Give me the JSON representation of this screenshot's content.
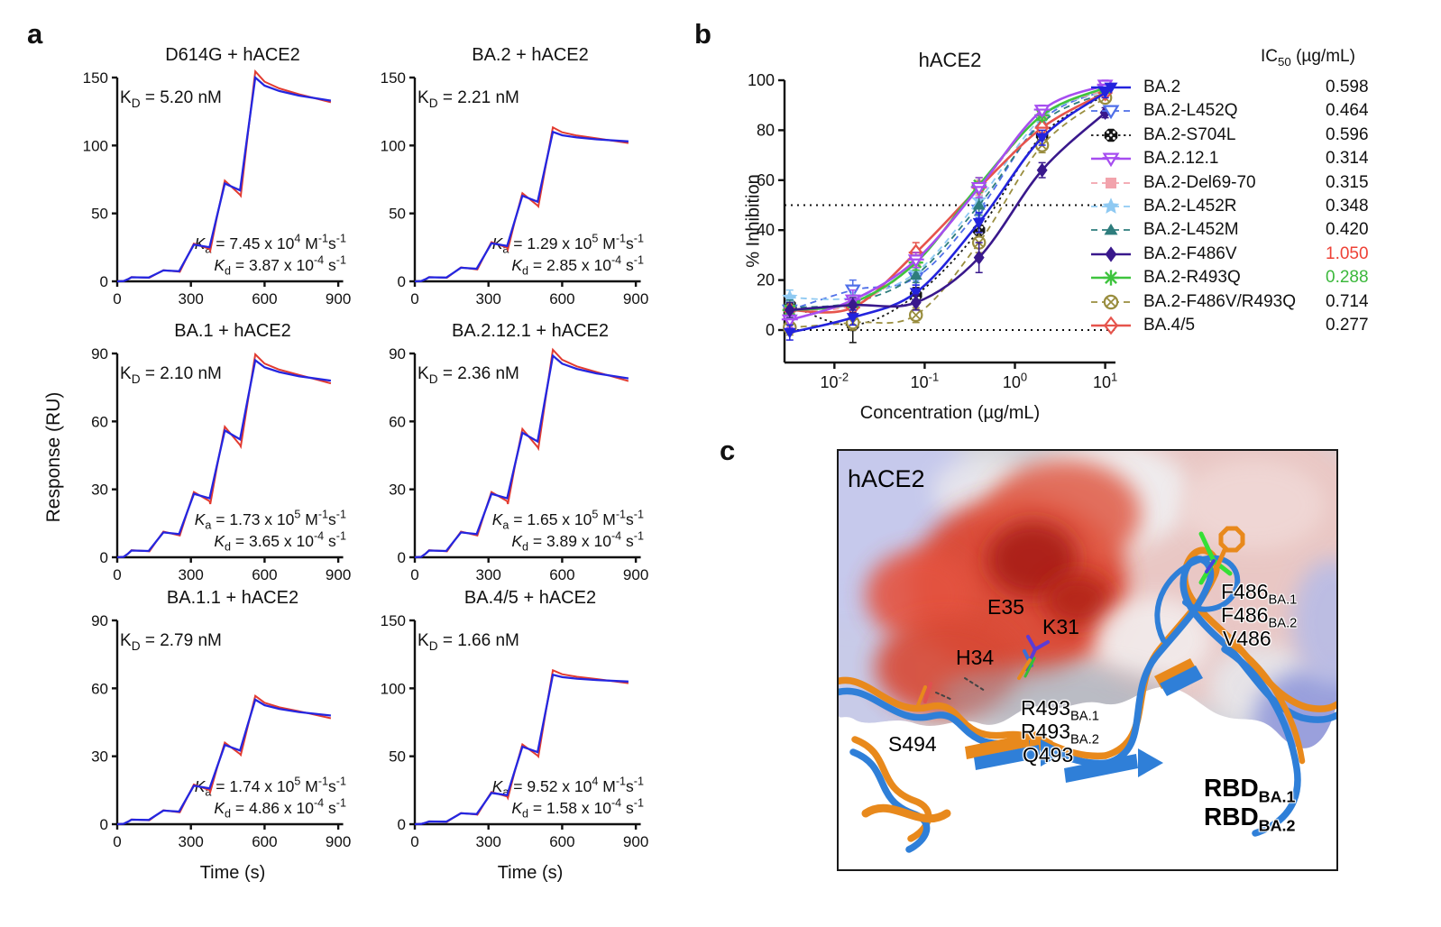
{
  "figure": {
    "panel_a_letter": "a",
    "panel_b_letter": "b",
    "panel_c_letter": "c"
  },
  "chart_data": [
    {
      "type": "line",
      "title": "D614G + hACE2",
      "xlabel": "Time (s)",
      "ylabel": "Response (RU)",
      "show_xlabel": false,
      "kD": "5.20 nM",
      "ka_coeff": "7.45",
      "ka_exp": "4",
      "kd_coeff": "3.87",
      "kd_exp": "-4",
      "xlim": [
        0,
        940
      ],
      "ylim": [
        0,
        150
      ],
      "xticks": [
        0,
        300,
        600,
        900
      ],
      "yticks": [
        0,
        50,
        100,
        150
      ],
      "steps": [
        3,
        8,
        27,
        72,
        150
      ],
      "end_value": 133
    },
    {
      "type": "line",
      "title": "BA.2 + hACE2",
      "xlabel": "Time (s)",
      "ylabel": "Response (RU)",
      "show_xlabel": false,
      "kD": "2.21 nM",
      "ka_coeff": "1.29",
      "ka_exp": "5",
      "kd_coeff": "2.85",
      "kd_exp": "-4",
      "xlim": [
        0,
        940
      ],
      "ylim": [
        0,
        150
      ],
      "xticks": [
        0,
        300,
        600,
        900
      ],
      "yticks": [
        0,
        50,
        100,
        150
      ],
      "steps": [
        3,
        10,
        28,
        63,
        110
      ],
      "end_value": 103
    },
    {
      "type": "line",
      "title": "BA.1 + hACE2",
      "xlabel": "Time (s)",
      "ylabel": "Response (RU)",
      "show_xlabel": false,
      "kD": "2.10 nM",
      "ka_coeff": "1.73",
      "ka_exp": "5",
      "kd_coeff": "3.65",
      "kd_exp": "-4",
      "xlim": [
        0,
        940
      ],
      "ylim": [
        0,
        90
      ],
      "xticks": [
        0,
        300,
        600,
        900
      ],
      "yticks": [
        0,
        30,
        60,
        90
      ],
      "steps": [
        3,
        11,
        28,
        56,
        87
      ],
      "end_value": 78
    },
    {
      "type": "line",
      "title": "BA.2.12.1 + hACE2",
      "xlabel": "Time (s)",
      "ylabel": "Response (RU)",
      "show_xlabel": false,
      "kD": "2.36 nM",
      "ka_coeff": "1.65",
      "ka_exp": "5",
      "kd_coeff": "3.89",
      "kd_exp": "-4",
      "xlim": [
        0,
        940
      ],
      "ylim": [
        0,
        90
      ],
      "xticks": [
        0,
        300,
        600,
        900
      ],
      "yticks": [
        0,
        30,
        60,
        90
      ],
      "steps": [
        3,
        11,
        28,
        55,
        89
      ],
      "end_value": 79
    },
    {
      "type": "line",
      "title": "BA.1.1 + hACE2",
      "xlabel": "Time (s)",
      "ylabel": "Response (RU)",
      "show_xlabel": true,
      "kD": "2.79 nM",
      "ka_coeff": "1.74",
      "ka_exp": "5",
      "kd_coeff": "4.86",
      "kd_exp": "-4",
      "xlim": [
        0,
        940
      ],
      "ylim": [
        0,
        90
      ],
      "xticks": [
        0,
        300,
        600,
        900
      ],
      "yticks": [
        0,
        30,
        60,
        90
      ],
      "steps": [
        2,
        6,
        17,
        35,
        55
      ],
      "end_value": 48
    },
    {
      "type": "line",
      "title": "BA.4/5 + hACE2",
      "xlabel": "Time (s)",
      "ylabel": "Response (RU)",
      "show_xlabel": true,
      "kD": "1.66 nM",
      "ka_coeff": "9.52",
      "ka_exp": "4",
      "kd_coeff": "1.58",
      "kd_exp": "-4",
      "xlim": [
        0,
        940
      ],
      "ylim": [
        0,
        150
      ],
      "xticks": [
        0,
        300,
        600,
        900
      ],
      "yticks": [
        0,
        50,
        100,
        150
      ],
      "steps": [
        2,
        8,
        23,
        57,
        110
      ],
      "end_value": 105
    },
    {
      "type": "scatter-line",
      "title": "hACE2",
      "xlabel": "Concentration (µg/mL)",
      "ylabel": "% Inhibition",
      "xscale": "log",
      "ylim": [
        0,
        100
      ],
      "yticks": [
        0,
        20,
        40,
        60,
        80,
        100
      ],
      "xticks": [
        {
          "value": 0.01,
          "exp": "-2"
        },
        {
          "value": 0.1,
          "exp": "-1"
        },
        {
          "value": 1,
          "exp": "0"
        },
        {
          "value": 10,
          "exp": "1"
        }
      ],
      "x": [
        0.0032,
        0.016,
        0.08,
        0.4,
        2,
        10
      ],
      "reference_lines": [
        0,
        50
      ],
      "ic50_header_main": "IC",
      "ic50_header_sub": "50",
      "ic50_header_rest": " (µg/mL)",
      "series": [
        {
          "name": "BA.2",
          "color": "#2323dd",
          "marker": "tri-down",
          "line": "solid",
          "ic50": "0.598",
          "ic50_color": "#111111",
          "values": [
            -1,
            5,
            15,
            43,
            77,
            95
          ],
          "err": [
            3,
            3,
            3,
            4,
            3,
            2
          ]
        },
        {
          "name": "BA.2-L452Q",
          "color": "#4f6fe8",
          "marker": "tri-down-open",
          "line": "dashed",
          "ic50": "0.464",
          "ic50_color": "#111111",
          "values": [
            8,
            16,
            21,
            48,
            84,
            96
          ],
          "err": [
            4,
            4,
            3,
            3,
            3,
            2
          ]
        },
        {
          "name": "BA.2-S704L",
          "color": "#141414",
          "marker": "octagon",
          "line": "dotted",
          "ic50": "0.596",
          "ic50_color": "#111111",
          "values": [
            10,
            2,
            14,
            40,
            78,
            94
          ],
          "err": [
            3,
            7,
            3,
            3,
            3,
            2
          ]
        },
        {
          "name": "BA.2.12.1",
          "color": "#a64df0",
          "marker": "tri-down-bar",
          "line": "solid",
          "ic50": "0.314",
          "ic50_color": "#111111",
          "values": [
            4,
            12,
            28,
            57,
            88,
            98
          ],
          "err": [
            3,
            4,
            3,
            4,
            2,
            2
          ]
        },
        {
          "name": "BA.2-Del69-70",
          "color": "#f2a3ac",
          "marker": "square",
          "line": "dashed",
          "ic50": "0.315",
          "ic50_color": "#111111",
          "values": [
            8,
            10,
            27,
            57,
            86,
            96
          ],
          "err": [
            3,
            3,
            3,
            3,
            2,
            2
          ]
        },
        {
          "name": "BA.2-L452R",
          "color": "#8ec9f2",
          "marker": "star",
          "line": "dashed",
          "ic50": "0.348",
          "ic50_color": "#111111",
          "values": [
            13,
            13,
            23,
            52,
            85,
            96
          ],
          "err": [
            3,
            3,
            3,
            3,
            2,
            2
          ]
        },
        {
          "name": "BA.2-L452M",
          "color": "#2e7d7d",
          "marker": "tri-up",
          "line": "dashed",
          "ic50": "0.420",
          "ic50_color": "#111111",
          "values": [
            9,
            11,
            22,
            50,
            83,
            95
          ],
          "err": [
            3,
            3,
            3,
            4,
            2,
            2
          ]
        },
        {
          "name": "BA.2-F486V",
          "color": "#39188c",
          "marker": "diamond",
          "line": "solid",
          "ic50": "1.050",
          "ic50_color": "#ee4136",
          "values": [
            8,
            10,
            11,
            29,
            64,
            87
          ],
          "err": [
            3,
            3,
            3,
            6,
            3,
            2
          ]
        },
        {
          "name": "BA.2-R493Q",
          "color": "#3ec43e",
          "marker": "asterisk",
          "line": "solid",
          "ic50": "0.288",
          "ic50_color": "#3cb83c",
          "values": [
            8,
            11,
            27,
            58,
            86,
            97
          ],
          "err": [
            3,
            3,
            3,
            3,
            2,
            2
          ]
        },
        {
          "name": "BA.2-F486V/R493Q",
          "color": "#998d3e",
          "marker": "circle-x",
          "line": "dashed",
          "ic50": "0.714",
          "ic50_color": "#111111",
          "values": [
            1,
            3,
            6,
            35,
            74,
            93
          ],
          "err": [
            3,
            3,
            3,
            4,
            3,
            2
          ]
        },
        {
          "name": "BA.4/5",
          "color": "#e6544c",
          "marker": "diamond-open-bar",
          "line": "solid",
          "ic50": "0.277",
          "ic50_color": "#111111",
          "values": [
            8,
            9,
            31,
            57,
            81,
            95
          ],
          "err": [
            3,
            3,
            4,
            4,
            3,
            2
          ]
        }
      ]
    }
  ],
  "panel_c": {
    "labels": [
      {
        "text": "hACE2",
        "sub": "",
        "color": "#1a1a1a"
      },
      {
        "text": "E35",
        "sub": "",
        "color": "#1a1a1a"
      },
      {
        "text": "K31",
        "sub": "",
        "color": "#1a1a1a"
      },
      {
        "text": "H34",
        "sub": "",
        "color": "#1a1a1a"
      },
      {
        "text": "F486",
        "sub": "BA.1",
        "color": "#ef8a1e"
      },
      {
        "text": "F486",
        "sub": "BA.2",
        "color": "#4a90e2"
      },
      {
        "text": "V486",
        "sub": "",
        "color": "#3ce23c"
      },
      {
        "text": "R493",
        "sub": "BA.1",
        "color": "#ef8a1e"
      },
      {
        "text": "R493",
        "sub": "BA.2",
        "color": "#4a90e2"
      },
      {
        "text": "Q493",
        "sub": "",
        "color": "#3ce23c"
      },
      {
        "text": "S494",
        "sub": "",
        "color": "#f0923e"
      },
      {
        "text": "RBD",
        "sub": "BA.1",
        "color": "#ef8a1e"
      },
      {
        "text": "RBD",
        "sub": "BA.2",
        "color": "#5b9be6"
      }
    ]
  }
}
